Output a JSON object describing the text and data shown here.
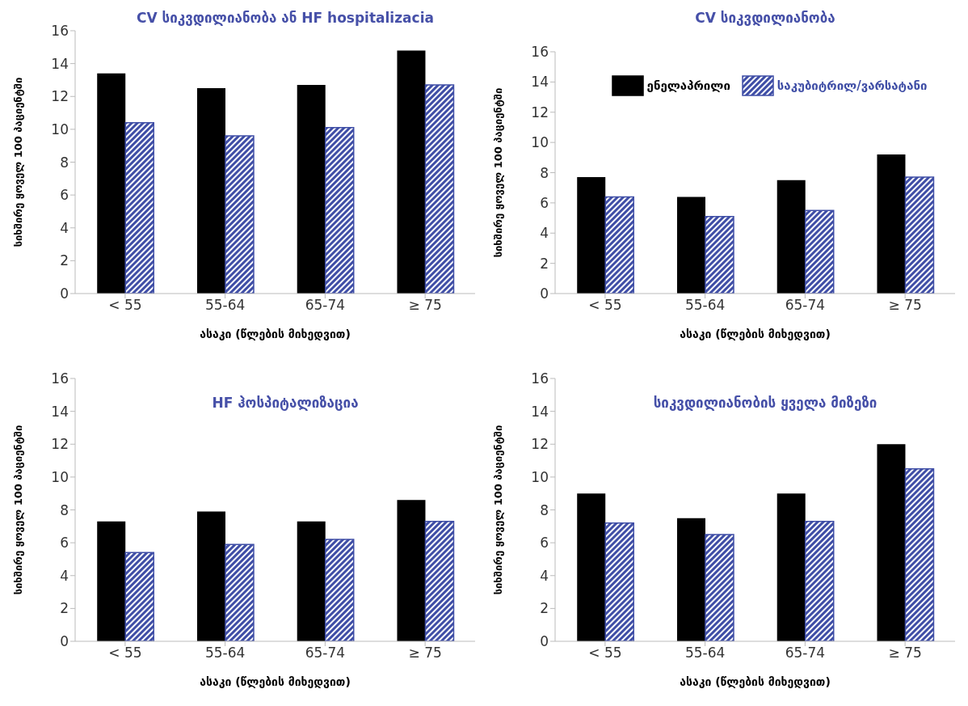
{
  "chart_data": [
    {
      "type": "bar",
      "title": "CV სიკვდილიანობა ან HF hospitalizacia",
      "xlabel": "ასაკი (წლების მიხედვით)",
      "ylabel": "სიხშირე ყოველ 100 პაციენტში",
      "categories": [
        "< 55",
        "55-64",
        "65-74",
        "≥ 75"
      ],
      "series": [
        {
          "color": "#000000",
          "values": [
            13.4,
            12.5,
            12.7,
            14.8
          ]
        },
        {
          "color": "#3f4ea6",
          "values": [
            10.4,
            9.6,
            10.1,
            12.7
          ]
        }
      ],
      "ylim": [
        0,
        16
      ],
      "yticks": [
        0,
        2,
        4,
        6,
        8,
        10,
        12,
        14,
        16
      ],
      "grid": false,
      "legend": false
    },
    {
      "type": "bar",
      "title": "CV სიკვდილიანობა",
      "xlabel": "ასაკი (წლების მიხედვით)",
      "ylabel": "სიხშირე ყოველ 100 პაციენტში",
      "categories": [
        "< 55",
        "55-64",
        "65-74",
        "≥ 75"
      ],
      "series": [
        {
          "name": "ენელაპრილი",
          "color": "#000000",
          "values": [
            7.7,
            6.4,
            7.5,
            9.2
          ]
        },
        {
          "name": "საკუბიტრილ/ვარსატანი",
          "color": "#3f4ea6",
          "values": [
            6.4,
            5.1,
            5.5,
            7.7
          ]
        }
      ],
      "ylim": [
        0,
        16
      ],
      "yticks": [
        0,
        2,
        4,
        6,
        8,
        10,
        12,
        14,
        16
      ],
      "grid": false,
      "legend": "top"
    },
    {
      "type": "bar",
      "title": "HF ჰოსპიტალიზაცია",
      "xlabel": "ასაკი (წლების მიხედვით)",
      "ylabel": "სიხშირე ყოველ 100 პაციენტში",
      "categories": [
        "< 55",
        "55-64",
        "65-74",
        "≥ 75"
      ],
      "series": [
        {
          "color": "#000000",
          "values": [
            7.3,
            7.9,
            7.3,
            8.6
          ]
        },
        {
          "color": "#3f4ea6",
          "values": [
            5.4,
            5.9,
            6.2,
            7.3
          ]
        }
      ],
      "ylim": [
        0,
        16
      ],
      "yticks": [
        0,
        2,
        4,
        6,
        8,
        10,
        12,
        14,
        16
      ],
      "grid": false,
      "legend": false
    },
    {
      "type": "bar",
      "title": "სიკვდილიანობის ყველა მიზეზი",
      "xlabel": "ასაკი (წლების მიხედვით)",
      "ylabel": "სიხშირე ყოველ 100 პაციენტში",
      "categories": [
        "< 55",
        "55-64",
        "65-74",
        "≥ 75"
      ],
      "series": [
        {
          "color": "#000000",
          "values": [
            9.0,
            7.5,
            9.0,
            12.0
          ]
        },
        {
          "color": "#3f4ea6",
          "values": [
            7.2,
            6.5,
            7.3,
            10.5
          ]
        }
      ],
      "ylim": [
        0,
        16
      ],
      "yticks": [
        0,
        2,
        4,
        6,
        8,
        10,
        12,
        14,
        16
      ],
      "grid": false,
      "legend": false
    }
  ]
}
